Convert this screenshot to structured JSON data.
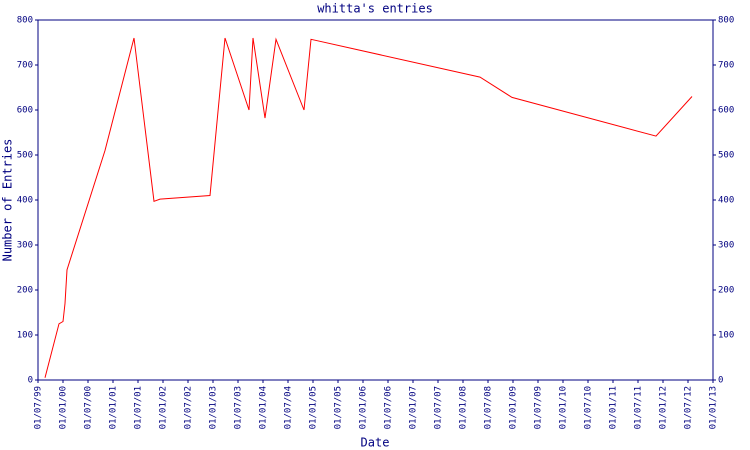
{
  "chart_data": {
    "type": "line",
    "title": "whitta's entries",
    "xlabel": "Date",
    "ylabel": "Number of Entries",
    "x": [
      1999.64,
      1999.92,
      2000.0,
      2000.04,
      2000.08,
      2000.84,
      2001.42,
      2001.82,
      2001.94,
      2002.94,
      2003.24,
      2003.72,
      2003.8,
      2004.04,
      2004.26,
      2004.82,
      2004.96,
      2008.34,
      2008.98,
      2011.86,
      2012.58
    ],
    "series": [
      {
        "name": "entries",
        "color": "#ff0000",
        "values": [
          5,
          125,
          130,
          170,
          245,
          510,
          760,
          397,
          402,
          410,
          760,
          600,
          760,
          582,
          757,
          600,
          757,
          673,
          628,
          542,
          630
        ]
      }
    ],
    "xlim": [
      1999.5,
      2013.0
    ],
    "xticks": [
      {
        "value": 1999.5,
        "label": "01/07/99"
      },
      {
        "value": 2000.0,
        "label": "01/01/00"
      },
      {
        "value": 2000.5,
        "label": "01/07/00"
      },
      {
        "value": 2001.0,
        "label": "01/01/01"
      },
      {
        "value": 2001.5,
        "label": "01/07/01"
      },
      {
        "value": 2002.0,
        "label": "01/01/02"
      },
      {
        "value": 2002.5,
        "label": "01/07/02"
      },
      {
        "value": 2003.0,
        "label": "01/01/03"
      },
      {
        "value": 2003.5,
        "label": "01/07/03"
      },
      {
        "value": 2004.0,
        "label": "01/01/04"
      },
      {
        "value": 2004.5,
        "label": "01/07/04"
      },
      {
        "value": 2005.0,
        "label": "01/01/05"
      },
      {
        "value": 2005.5,
        "label": "01/07/05"
      },
      {
        "value": 2006.0,
        "label": "01/01/06"
      },
      {
        "value": 2006.5,
        "label": "01/07/06"
      },
      {
        "value": 2007.0,
        "label": "01/01/07"
      },
      {
        "value": 2007.5,
        "label": "01/07/07"
      },
      {
        "value": 2008.0,
        "label": "01/01/08"
      },
      {
        "value": 2008.5,
        "label": "01/07/08"
      },
      {
        "value": 2009.0,
        "label": "01/01/09"
      },
      {
        "value": 2009.5,
        "label": "01/07/09"
      },
      {
        "value": 2010.0,
        "label": "01/01/10"
      },
      {
        "value": 2010.5,
        "label": "01/07/10"
      },
      {
        "value": 2011.0,
        "label": "01/01/11"
      },
      {
        "value": 2011.5,
        "label": "01/07/11"
      },
      {
        "value": 2012.0,
        "label": "01/01/12"
      },
      {
        "value": 2012.5,
        "label": "01/07/12"
      },
      {
        "value": 2013.0,
        "label": "01/01/13"
      }
    ],
    "ylim": [
      0,
      800
    ],
    "yticks": [
      0,
      100,
      200,
      300,
      400,
      500,
      600,
      700,
      800
    ],
    "grid": false
  }
}
